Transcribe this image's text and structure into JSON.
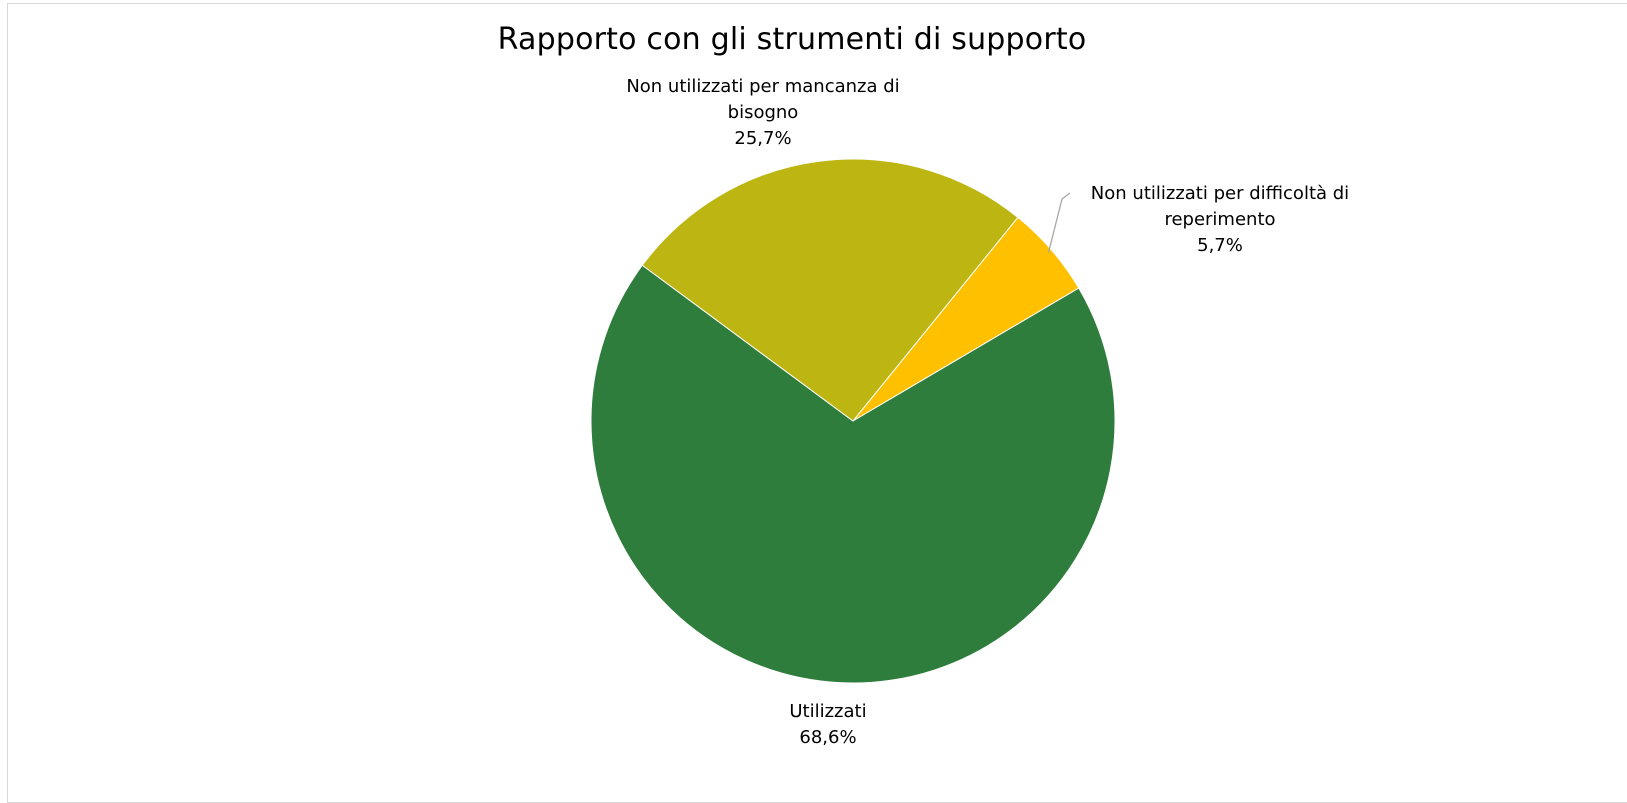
{
  "chart_data": {
    "type": "pie",
    "title": "Rapporto con gli strumenti di supporto",
    "slices": [
      {
        "label_lines": [
          "Non utilizzati per difficoltà di",
          "reperimento"
        ],
        "percent_label": "5,7%",
        "value": 5.7,
        "color": "#FFC000"
      },
      {
        "label_lines": [
          "Utilizzati"
        ],
        "percent_label": "68,6%",
        "value": 68.6,
        "color": "#2E7D3C"
      },
      {
        "label_lines": [
          "Non utilizzati per mancanza di",
          "bisogno"
        ],
        "percent_label": "25,7%",
        "value": 25.7,
        "color": "#BDB612"
      }
    ],
    "start_angle_deg": 39,
    "direction": "clockwise",
    "legend": "none"
  }
}
